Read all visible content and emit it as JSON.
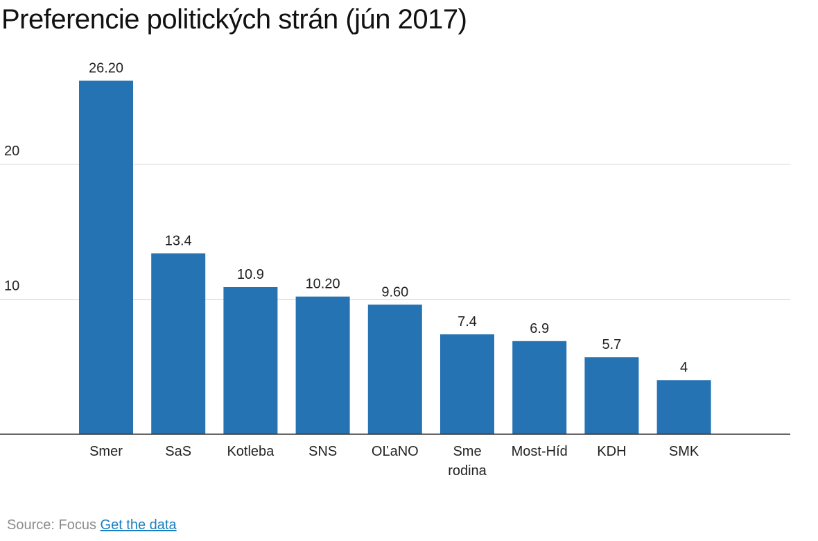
{
  "chart_data": {
    "type": "bar",
    "title": "Preferencie politických strán (jún 2017)",
    "xlabel": "",
    "ylabel": "",
    "ylim": [
      0,
      30
    ],
    "yticks": [
      "10",
      "20"
    ],
    "ytick_values": [
      10,
      20
    ],
    "grid": true,
    "bar_color": "#2673b3",
    "categories": [
      [
        "Smer"
      ],
      [
        "SaS"
      ],
      [
        "Kotleba"
      ],
      [
        "SNS"
      ],
      [
        "OĽaNO"
      ],
      [
        "Sme",
        "rodina"
      ],
      [
        "Most-Híd"
      ],
      [
        "KDH"
      ],
      [
        "SMK"
      ]
    ],
    "values": [
      26.2,
      13.4,
      10.9,
      10.2,
      9.6,
      7.4,
      6.9,
      5.7,
      4
    ],
    "value_labels": [
      "26.20",
      "13.4",
      "10.9",
      "10.20",
      "9.60",
      "7.4",
      "6.9",
      "5.7",
      "4"
    ]
  },
  "footer": {
    "source": "Source: Focus",
    "link": "Get the data"
  },
  "colors": {
    "bar": "#2673b3",
    "grid": "#d9d9d9",
    "axis": "#333333",
    "link": "#1a7fc1",
    "source": "#8c8c8c"
  }
}
